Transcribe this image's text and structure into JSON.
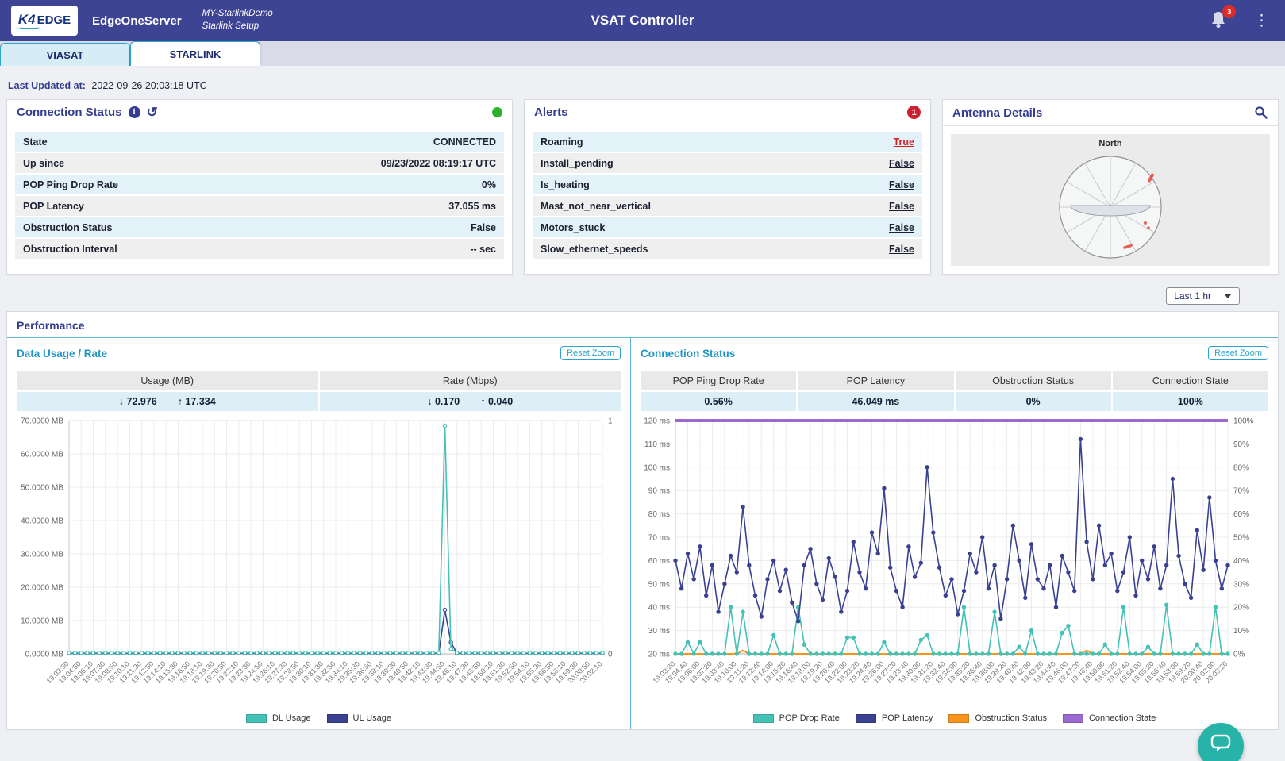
{
  "navbar": {
    "logo_k4": "K4",
    "logo_edge": "EDGE",
    "server_name": "EdgeOneServer",
    "site_line1": "MY-StarlinkDemo",
    "site_line2": "Starlink Setup",
    "title": "VSAT Controller",
    "notification_count": "3"
  },
  "tabs": {
    "viasat": "VIASAT",
    "starlink": "STARLINK"
  },
  "last_updated": {
    "label": "Last Updated at:",
    "value": "2022-09-26 20:03:18 UTC"
  },
  "connection_card": {
    "title": "Connection Status",
    "rows": [
      {
        "label": "State",
        "value": "CONNECTED"
      },
      {
        "label": "Up since",
        "value": "09/23/2022 08:19:17 UTC"
      },
      {
        "label": "POP Ping Drop Rate",
        "value": "0%"
      },
      {
        "label": "POP Latency",
        "value": "37.055 ms"
      },
      {
        "label": "Obstruction Status",
        "value": "False"
      },
      {
        "label": "Obstruction Interval",
        "value": "-- sec"
      }
    ]
  },
  "alerts_card": {
    "title": "Alerts",
    "badge": "1",
    "rows": [
      {
        "label": "Roaming",
        "value": "True",
        "alert": true
      },
      {
        "label": "Install_pending",
        "value": "False",
        "alert": false
      },
      {
        "label": "Is_heating",
        "value": "False",
        "alert": false
      },
      {
        "label": "Mast_not_near_vertical",
        "value": "False",
        "alert": false
      },
      {
        "label": "Motors_stuck",
        "value": "False",
        "alert": false
      },
      {
        "label": "Slow_ethernet_speeds",
        "value": "False",
        "alert": false
      }
    ]
  },
  "antenna_card": {
    "title": "Antenna Details",
    "compass_label": "North"
  },
  "time_range": {
    "selected": "Last 1 hr"
  },
  "performance": {
    "title": "Performance",
    "reset_zoom_label": "Reset Zoom",
    "colors": {
      "teal": "#45c1b6",
      "navy": "#3a4191",
      "orange": "#f7941d",
      "purple": "#9a6ad1"
    }
  },
  "chart_data": [
    {
      "type": "line",
      "title": "Data Usage / Rate",
      "stats": {
        "columns": [
          {
            "header": "Usage (MB)",
            "down": "↓ 72.976",
            "up": "↑ 17.334"
          },
          {
            "header": "Rate (Mbps)",
            "down": "↓ 0.170",
            "up": "↑ 0.040"
          }
        ]
      },
      "points": 89,
      "label_every": 2,
      "x_labels": [
        "19:03:30",
        "19:04:50",
        "19:06:10",
        "19:07:30",
        "19:08:50",
        "19:10:10",
        "19:11:30",
        "19:12:50",
        "19:14:10",
        "19:15:30",
        "19:16:50",
        "19:18:10",
        "19:19:30",
        "19:20:50",
        "19:22:10",
        "19:23:30",
        "19:24:50",
        "19:26:10",
        "19:27:30",
        "19:28:50",
        "19:30:10",
        "19:31:30",
        "19:32:50",
        "19:34:10",
        "19:35:30",
        "19:36:50",
        "19:38:10",
        "19:39:30",
        "19:40:50",
        "19:42:10",
        "19:43:30",
        "19:44:50",
        "19:46:10",
        "19:47:30",
        "19:48:50",
        "19:50:10",
        "19:51:30",
        "19:52:50",
        "19:54:10",
        "19:55:30",
        "19:56:50",
        "19:58:10",
        "19:59:30",
        "20:00:50",
        "20:02:10"
      ],
      "y_left": {
        "min": 0,
        "max": 70,
        "ticks": [
          "70.0000 MB",
          "60.0000 MB",
          "50.0000 MB",
          "40.0000 MB",
          "30.0000 MB",
          "20.0000 MB",
          "10.0000 MB",
          "0.0000 MB"
        ]
      },
      "y_right": {
        "min": 0,
        "max": 1,
        "ticks": [
          "1",
          "0"
        ]
      },
      "series": [
        {
          "name": "UL Usage",
          "color": "#3a4191",
          "axis": "left",
          "base": 0.15,
          "overrides": {
            "62": 13.2,
            "63": 3.5
          },
          "markers": "open",
          "width": 1.6
        },
        {
          "name": "DL Usage",
          "color": "#45c1b6",
          "axis": "left",
          "base": 0.3,
          "overrides": {
            "62": 68.4,
            "63": 1.5
          },
          "markers": "open",
          "width": 1.6
        }
      ],
      "legend_order": [
        "DL Usage",
        "UL Usage"
      ]
    },
    {
      "type": "line",
      "title": "Connection Status",
      "stats": {
        "columns": [
          {
            "header": "POP Ping Drop Rate",
            "value": "0.56%"
          },
          {
            "header": "POP Latency",
            "value": "46.049 ms"
          },
          {
            "header": "Obstruction Status",
            "value": "0%"
          },
          {
            "header": "Connection State",
            "value": "100%"
          }
        ]
      },
      "points": 91,
      "label_every": 2,
      "x_labels": [
        "19:03:20",
        "19:04:40",
        "19:06:00",
        "19:07:20",
        "19:08:40",
        "19:10:00",
        "19:11:20",
        "19:12:40",
        "19:14:00",
        "19:15:20",
        "19:16:40",
        "19:18:00",
        "19:19:20",
        "19:20:40",
        "19:22:00",
        "19:23:20",
        "19:24:40",
        "19:26:00",
        "19:27:20",
        "19:28:40",
        "19:30:00",
        "19:31:20",
        "19:32:40",
        "19:34:00",
        "19:35:20",
        "19:36:40",
        "19:38:00",
        "19:39:20",
        "19:40:40",
        "19:42:00",
        "19:43:20",
        "19:44:40",
        "19:46:00",
        "19:47:20",
        "19:48:40",
        "19:50:00",
        "19:51:20",
        "19:52:40",
        "19:54:00",
        "19:55:20",
        "19:56:40",
        "19:58:00",
        "19:59:20",
        "20:00:40",
        "20:02:00",
        "20:03:20"
      ],
      "y_left": {
        "min": 20,
        "max": 120,
        "ticks": [
          "120 ms",
          "110 ms",
          "100 ms",
          "90 ms",
          "80 ms",
          "70 ms",
          "60 ms",
          "50 ms",
          "40 ms",
          "30 ms",
          "20 ms"
        ]
      },
      "y_right": {
        "min": 0,
        "max": 100,
        "ticks": [
          "100%",
          "90%",
          "80%",
          "70%",
          "60%",
          "50%",
          "40%",
          "30%",
          "20%",
          "10%",
          "0%"
        ]
      },
      "series": [
        {
          "name": "Connection State",
          "color": "#9a6ad1",
          "axis": "right",
          "base": 100,
          "width": 4,
          "markers": "none"
        },
        {
          "name": "Obstruction Status",
          "color": "#f7941d",
          "axis": "right",
          "base": 0,
          "overrides": {
            "11": 1.5,
            "67": 1.5
          },
          "width": 2,
          "markers": "none"
        },
        {
          "name": "POP Drop Rate",
          "color": "#45c1b6",
          "axis": "right",
          "base": 0,
          "overrides": {
            "2": 5,
            "4": 5,
            "9": 20,
            "11": 18,
            "16": 8,
            "20": 20,
            "21": 4,
            "28": 7,
            "29": 7,
            "34": 5,
            "40": 6,
            "41": 8,
            "47": 20,
            "52": 18,
            "56": 3,
            "58": 10,
            "63": 9,
            "64": 12,
            "70": 4,
            "73": 20,
            "77": 3,
            "80": 21,
            "85": 4,
            "88": 20
          },
          "markers": "dot",
          "width": 1.6
        },
        {
          "name": "POP Latency",
          "color": "#3a4191",
          "axis": "left",
          "markers": "dot",
          "width": 1.6,
          "values": [
            60,
            48,
            63,
            52,
            66,
            45,
            58,
            38,
            50,
            62,
            55,
            83,
            58,
            45,
            36,
            52,
            60,
            47,
            56,
            42,
            34,
            58,
            65,
            50,
            43,
            61,
            53,
            38,
            47,
            68,
            55,
            48,
            72,
            63,
            91,
            57,
            47,
            40,
            66,
            53,
            59,
            100,
            72,
            57,
            45,
            52,
            37,
            47,
            63,
            55,
            70,
            48,
            58,
            35,
            52,
            75,
            60,
            44,
            67,
            52,
            48,
            58,
            40,
            62,
            55,
            47,
            112,
            68,
            52,
            75,
            58,
            63,
            47,
            55,
            70,
            45,
            60,
            52,
            66,
            48,
            58,
            95,
            62,
            50,
            44,
            73,
            56,
            87,
            60,
            48,
            58
          ]
        }
      ],
      "legend_order": [
        "POP Drop Rate",
        "POP Latency",
        "Obstruction Status",
        "Connection State"
      ]
    }
  ]
}
